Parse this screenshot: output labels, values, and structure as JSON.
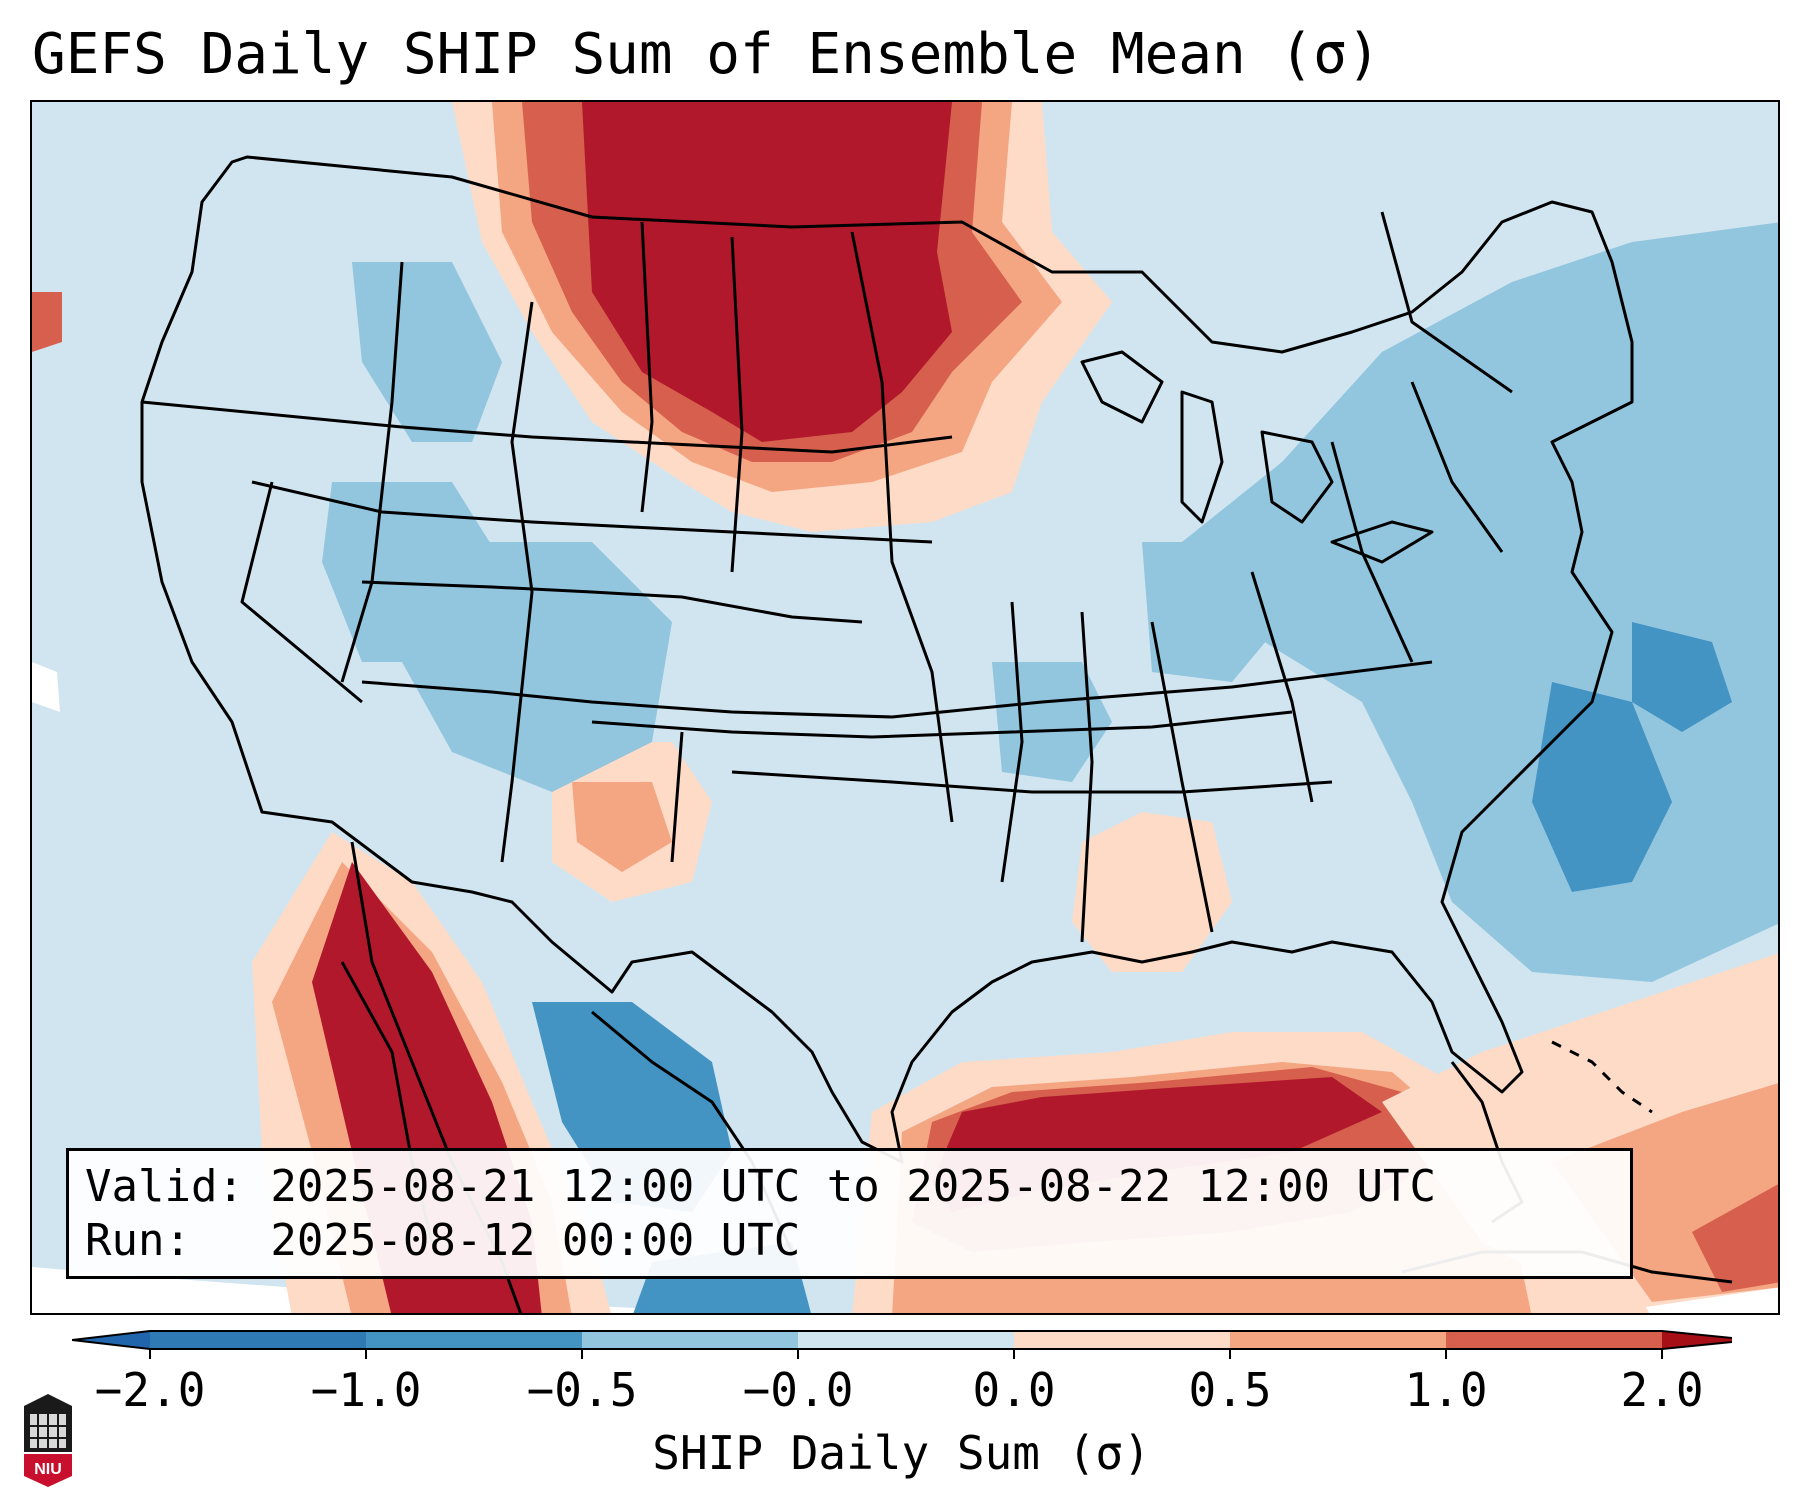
{
  "title": "GEFS Daily SHIP Sum of Ensemble Mean (σ)",
  "info": {
    "valid": "Valid: 2025-08-21 12:00 UTC to 2025-08-22 12:00 UTC",
    "run": "Run:   2025-08-12 00:00 UTC"
  },
  "colorbar": {
    "label": "SHIP Daily Sum (σ)",
    "ticks": [
      "−2.0",
      "−1.0",
      "−0.5",
      "−0.0",
      "0.0",
      "0.5",
      "1.0",
      "2.0"
    ],
    "bin_colors": [
      "#2f79b5",
      "#4393c3",
      "#92c5de",
      "#d1e5f0",
      "#fddbc7",
      "#f4a582",
      "#d6604d",
      "#b2182b"
    ],
    "under_color": "#2166ac",
    "over_color": "#a50f15"
  },
  "map_colors": {
    "background": "#d1e5f0",
    "outside": "#ffffff",
    "borders": "#000000"
  },
  "logo_text": "NIU"
}
